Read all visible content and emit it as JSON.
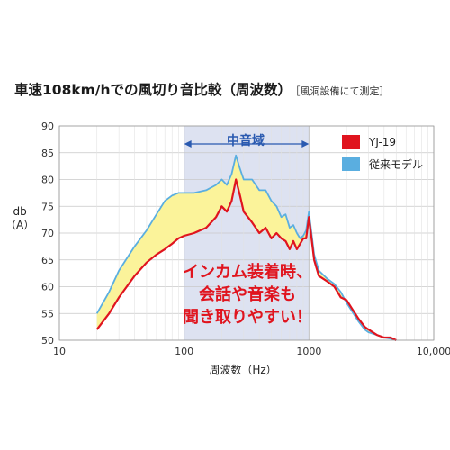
{
  "chart_data": {
    "type": "line",
    "title": "車速108km/hでの風切り音比較（周波数）",
    "subtitle": "［風洞設備にて測定］",
    "xlabel": "周波数（Hz）",
    "ylabel_line1": "db",
    "ylabel_line2": "（A）",
    "x_scale": "log",
    "xlim": [
      10,
      10000
    ],
    "ylim": [
      50,
      90
    ],
    "x_ticks": [
      10,
      100,
      1000,
      10000
    ],
    "x_tick_labels": [
      "10",
      "100",
      "1000",
      "10,000"
    ],
    "y_ticks": [
      50,
      55,
      60,
      65,
      70,
      75,
      80,
      85,
      90
    ],
    "y_tick_labels": [
      "50",
      "55",
      "60",
      "65",
      "70",
      "75",
      "80",
      "85",
      "90"
    ],
    "grid": true,
    "legend_position": "top-right",
    "highlight_band": {
      "label": "中音域",
      "x_range": [
        100,
        1000
      ]
    },
    "annotation": [
      "インカム装着時、",
      "会話や音楽も",
      "聞き取りやすい！"
    ],
    "series": [
      {
        "name": "YJ-19",
        "color": "#e0141e",
        "x": [
          20,
          25,
          30,
          40,
          50,
          60,
          70,
          80,
          90,
          100,
          120,
          150,
          180,
          200,
          220,
          240,
          260,
          280,
          300,
          350,
          400,
          450,
          500,
          550,
          600,
          650,
          700,
          750,
          800,
          850,
          900,
          950,
          1000,
          1100,
          1200,
          1400,
          1600,
          1800,
          2000,
          2200,
          2500,
          2800,
          3000,
          3500,
          4000,
          4500,
          5000
        ],
        "y": [
          52.0,
          55.0,
          58.0,
          62.0,
          64.5,
          66.0,
          67.0,
          68.0,
          69.0,
          69.5,
          70.0,
          71.0,
          73.0,
          75.0,
          74.0,
          76.0,
          80.0,
          77.0,
          74.0,
          72.0,
          70.0,
          71.0,
          69.0,
          70.0,
          69.0,
          68.5,
          67.0,
          68.5,
          67.0,
          68.0,
          69.0,
          69.0,
          73.0,
          65.0,
          62.0,
          61.0,
          60.0,
          58.0,
          57.5,
          56.0,
          54.0,
          52.5,
          52.0,
          51.0,
          50.5,
          50.5,
          50.0
        ]
      },
      {
        "name": "従来モデル",
        "color": "#5aaee0",
        "x": [
          20,
          25,
          30,
          40,
          50,
          60,
          70,
          80,
          90,
          100,
          120,
          150,
          180,
          200,
          220,
          240,
          260,
          280,
          300,
          350,
          400,
          450,
          500,
          550,
          600,
          650,
          700,
          750,
          800,
          850,
          900,
          950,
          1000,
          1100,
          1200,
          1400,
          1600,
          1800,
          2000,
          2200,
          2500,
          2800,
          3000,
          3500,
          4000,
          4500,
          5000
        ],
        "y": [
          55.0,
          59.0,
          63.0,
          67.5,
          70.5,
          73.5,
          76.0,
          77.0,
          77.5,
          77.5,
          77.5,
          78.0,
          79.0,
          80.0,
          79.0,
          81.0,
          84.5,
          82.0,
          80.0,
          80.0,
          78.0,
          78.0,
          76.0,
          75.0,
          73.0,
          73.5,
          71.0,
          71.5,
          70.0,
          69.0,
          69.5,
          70.5,
          74.0,
          66.0,
          63.0,
          61.5,
          60.5,
          59.0,
          57.0,
          55.5,
          53.5,
          52.0,
          51.5,
          51.0,
          50.5,
          50.3,
          50.0
        ]
      }
    ]
  }
}
